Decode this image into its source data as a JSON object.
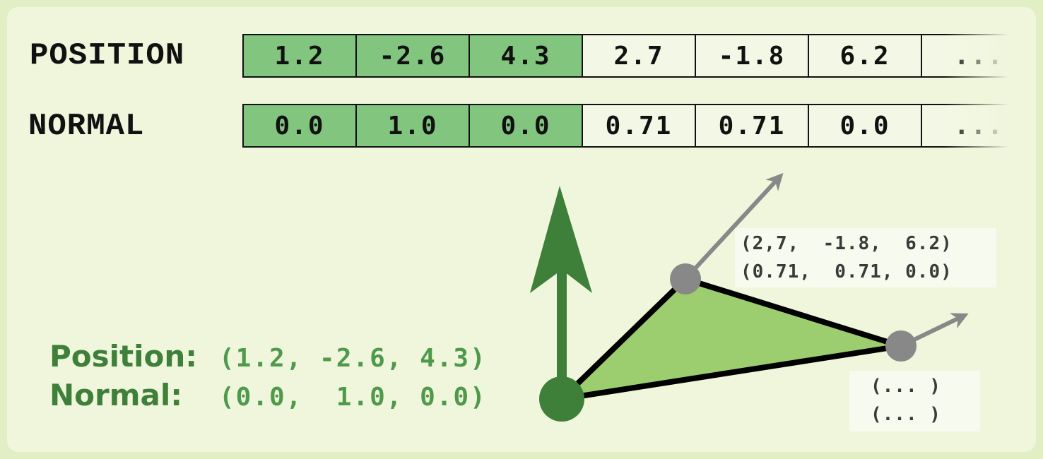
{
  "rows": [
    {
      "label": "POSITION",
      "cells": [
        "1.2",
        "-2.6",
        "4.3",
        "2.7",
        "-1.8",
        "6.2",
        "..."
      ]
    },
    {
      "label": "NORMAL",
      "cells": [
        "0.0",
        "1.0",
        "0.0",
        "0.71",
        "0.71",
        "0.0",
        "..."
      ]
    }
  ],
  "highlight_color": "#82c57f",
  "triangle_color": "#9ccd6e",
  "accent_color": "#3e7f3a",
  "vertex2": {
    "position": "(2,7,  -1.8,  6.2)",
    "normal": "(0.71,  0.71, 0.0)"
  },
  "vertex3": {
    "position": "(... )",
    "normal": "(... )"
  },
  "legend": {
    "position_label": "Position:",
    "position_value": "(1.2, -2.6, 4.3)",
    "normal_label": "Normal:",
    "normal_value": "(0.0,  1.0, 0.0)"
  }
}
